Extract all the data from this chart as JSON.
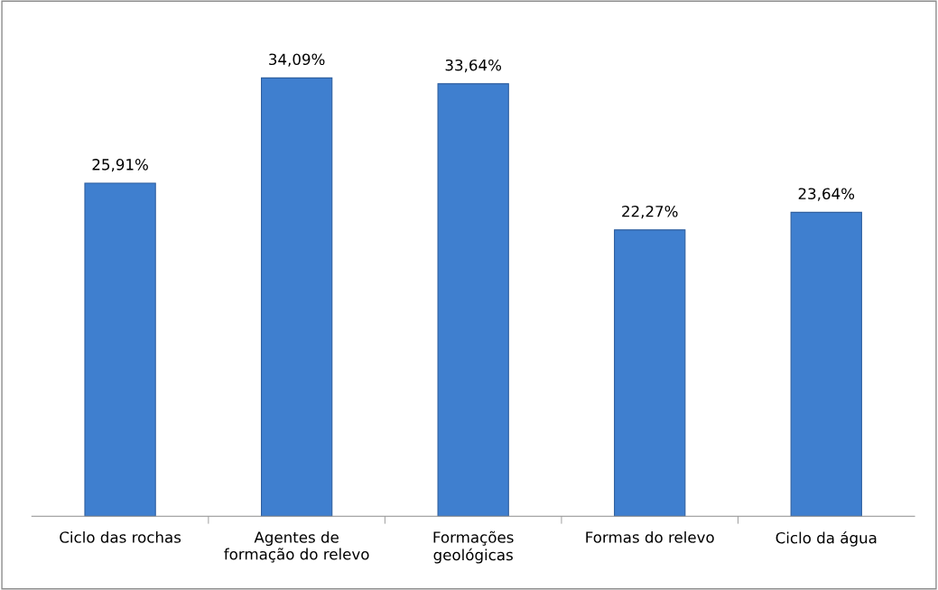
{
  "chart_data": {
    "type": "bar",
    "categories": [
      "Ciclo das rochas",
      "Agentes de\nformação do relevo",
      "Formações\ngeológicas",
      "Formas do relevo",
      "Ciclo da água"
    ],
    "values": [
      25.91,
      34.09,
      33.64,
      22.27,
      23.64
    ],
    "value_labels": [
      "25,91%",
      "34,09%",
      "33,64%",
      "22,27%",
      "23,64%"
    ],
    "color": "#3f7fcf"
  }
}
